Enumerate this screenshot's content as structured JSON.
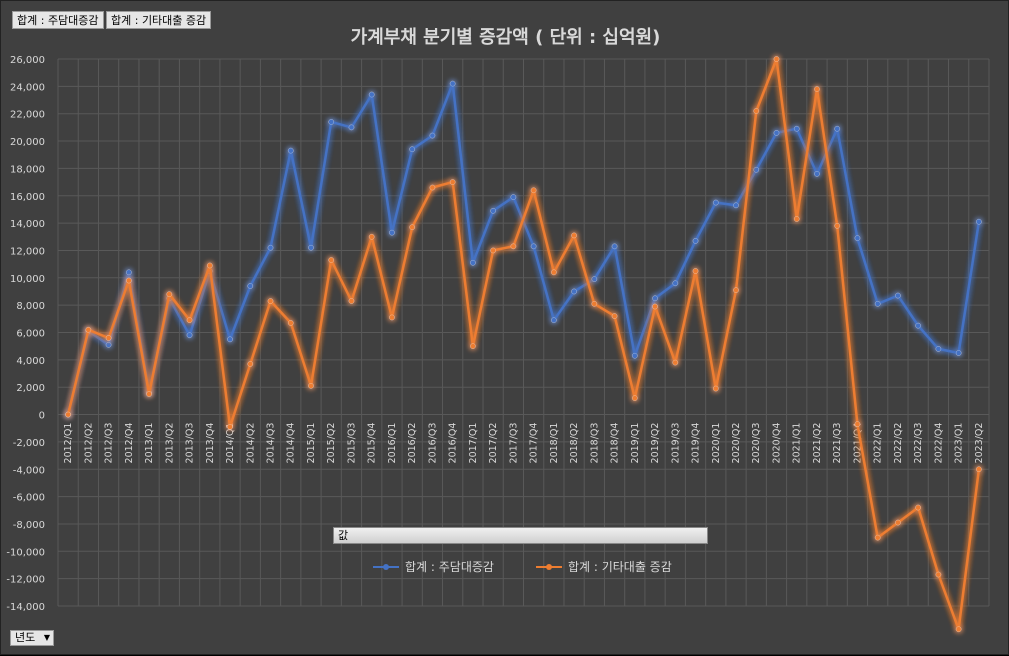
{
  "field_buttons": [
    "합계 : 주담대증감",
    "합계 : 기타대출 증감"
  ],
  "values_button": "값",
  "filter_button": {
    "label": "년도",
    "icon": "dropdown-arrow-icon"
  },
  "colors": {
    "series1": "#4472C4",
    "series2": "#ED7D31",
    "grid": "#595959",
    "background": "#404040"
  },
  "chart_data": {
    "type": "line",
    "title": "가계부채 분기별 증감액 ( 단위 : 십억원)",
    "xlabel": "",
    "ylabel": "",
    "ylim": [
      -14000,
      26000
    ],
    "ytick_step": 2000,
    "grid": true,
    "legend": "bottom-center",
    "categories": [
      "2012/Q1",
      "2012/Q2",
      "2012/Q3",
      "2012/Q4",
      "2013/Q1",
      "2013/Q2",
      "2013/Q3",
      "2013/Q4",
      "2014/Q1",
      "2014/Q2",
      "2014/Q3",
      "2014/Q4",
      "2015/Q1",
      "2015/Q2",
      "2015/Q3",
      "2015/Q4",
      "2016/Q1",
      "2016/Q2",
      "2016/Q3",
      "2016/Q4",
      "2017/Q1",
      "2017/Q2",
      "2017/Q3",
      "2017/Q4",
      "2018/Q1",
      "2018/Q2",
      "2018/Q3",
      "2018/Q4",
      "2019/Q1",
      "2019/Q2",
      "2019/Q3",
      "2019/Q4",
      "2020/Q1",
      "2020/Q2",
      "2020/Q3",
      "2020/Q4",
      "2021/Q1",
      "2021/Q2",
      "2021/Q3",
      "2021/Q4",
      "2022/Q1",
      "2022/Q2",
      "2022/Q3",
      "2022/Q4",
      "2023/Q1",
      "2023/Q2"
    ],
    "series": [
      {
        "name": "합계 : 주담대증감",
        "values": [
          0,
          6100,
          5100,
          10400,
          1600,
          8500,
          5800,
          10500,
          5500,
          9400,
          12200,
          19300,
          12200,
          21400,
          21000,
          23400,
          13300,
          19400,
          20400,
          24200,
          11100,
          14900,
          15900,
          12300,
          6900,
          9000,
          9900,
          12300,
          4300,
          8500,
          9600,
          12700,
          15500,
          15300,
          17900,
          20600,
          20900,
          17600,
          20900,
          12900,
          8100,
          8700,
          6500,
          4800,
          4500,
          14100
        ]
      },
      {
        "name": "합계 : 기타대출 증감",
        "values": [
          0,
          6200,
          5600,
          9800,
          1500,
          8800,
          6900,
          10900,
          -900,
          3700,
          8300,
          6700,
          2100,
          11300,
          8300,
          13000,
          7100,
          13700,
          16600,
          17000,
          5000,
          12000,
          12300,
          16400,
          10400,
          13100,
          8100,
          7200,
          1200,
          7900,
          3800,
          10500,
          1900,
          9100,
          22200,
          26000,
          14300,
          23800,
          13800,
          -700,
          -9000,
          -7900,
          -6800,
          -11700,
          -15700,
          -4000
        ]
      }
    ]
  }
}
